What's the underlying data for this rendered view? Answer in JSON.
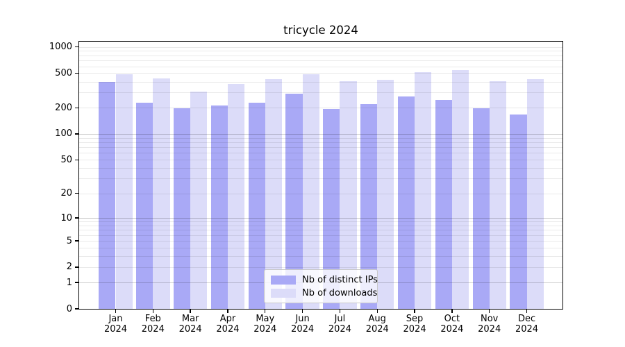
{
  "chart_data": {
    "type": "bar",
    "title": "tricycle 2024",
    "scale": "log1p",
    "ylim": [
      0,
      1151
    ],
    "yticks": [
      0,
      1,
      2,
      5,
      10,
      20,
      50,
      100,
      200,
      500,
      1000
    ],
    "grid": {
      "major": [
        1,
        10,
        100
      ],
      "minor": [
        2,
        3,
        4,
        5,
        6,
        7,
        8,
        9,
        20,
        30,
        40,
        50,
        60,
        70,
        80,
        90,
        200,
        300,
        400,
        500,
        600,
        700,
        800,
        900,
        1000
      ]
    },
    "categories": [
      "Jan",
      "Feb",
      "Mar",
      "Apr",
      "May",
      "Jun",
      "Jul",
      "Aug",
      "Sep",
      "Oct",
      "Nov",
      "Dec"
    ],
    "year_label": "2024",
    "series": [
      {
        "name": "Nb of distinct IPs",
        "color": "#a9a9f6",
        "values": [
          395,
          228,
          199,
          212,
          228,
          292,
          195,
          221,
          269,
          245,
          198,
          168
        ]
      },
      {
        "name": "Nb of downloads",
        "color": "#dcdcf9",
        "values": [
          490,
          436,
          306,
          379,
          428,
          483,
          402,
          423,
          511,
          543,
          402,
          428
        ]
      }
    ],
    "legend_position": "bottom-center-inside",
    "xlabel": "",
    "ylabel": ""
  }
}
